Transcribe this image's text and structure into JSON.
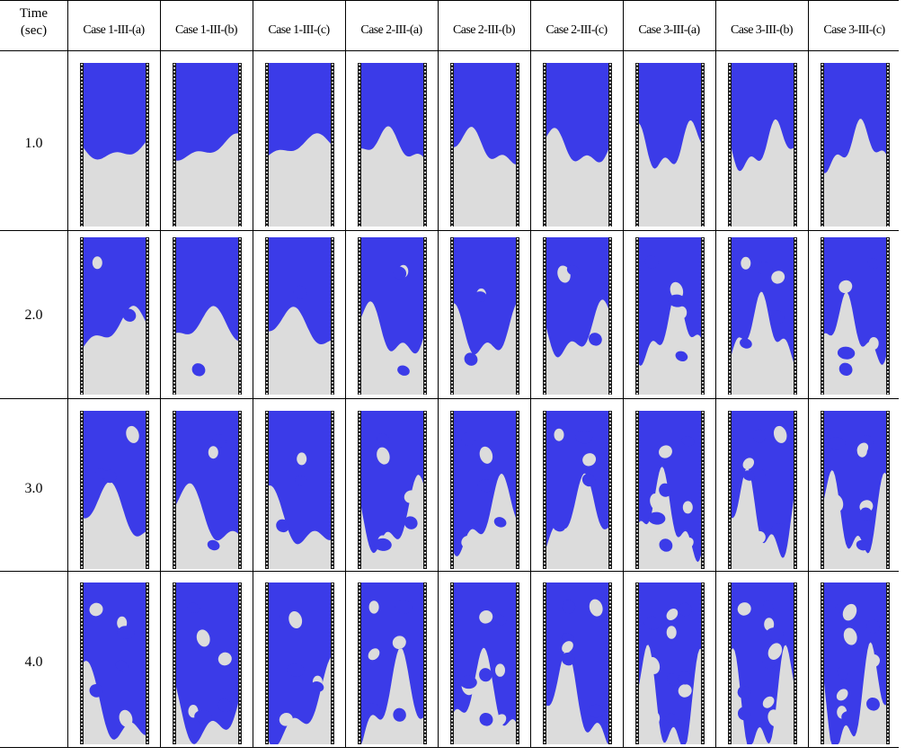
{
  "table": {
    "time_header_line1": "Time",
    "time_header_line2": "(sec)",
    "columns": [
      "Case 1-III-(a)",
      "Case 1-III-(b)",
      "Case 1-III-(c)",
      "Case 2-III-(a)",
      "Case 2-III-(b)",
      "Case 2-III-(c)",
      "Case 3-III-(a)",
      "Case 3-III-(b)",
      "Case 3-III-(c)"
    ],
    "rows": [
      {
        "time": "1.0"
      },
      {
        "time": "2.0"
      },
      {
        "time": "3.0"
      },
      {
        "time": "4.0"
      }
    ]
  },
  "colors": {
    "heavy_fluid": "#3b3be8",
    "light_fluid": "#dcdcdc",
    "wall": "#1a1a1a",
    "grid_lines": "#000000",
    "background": "#ffffff"
  }
}
